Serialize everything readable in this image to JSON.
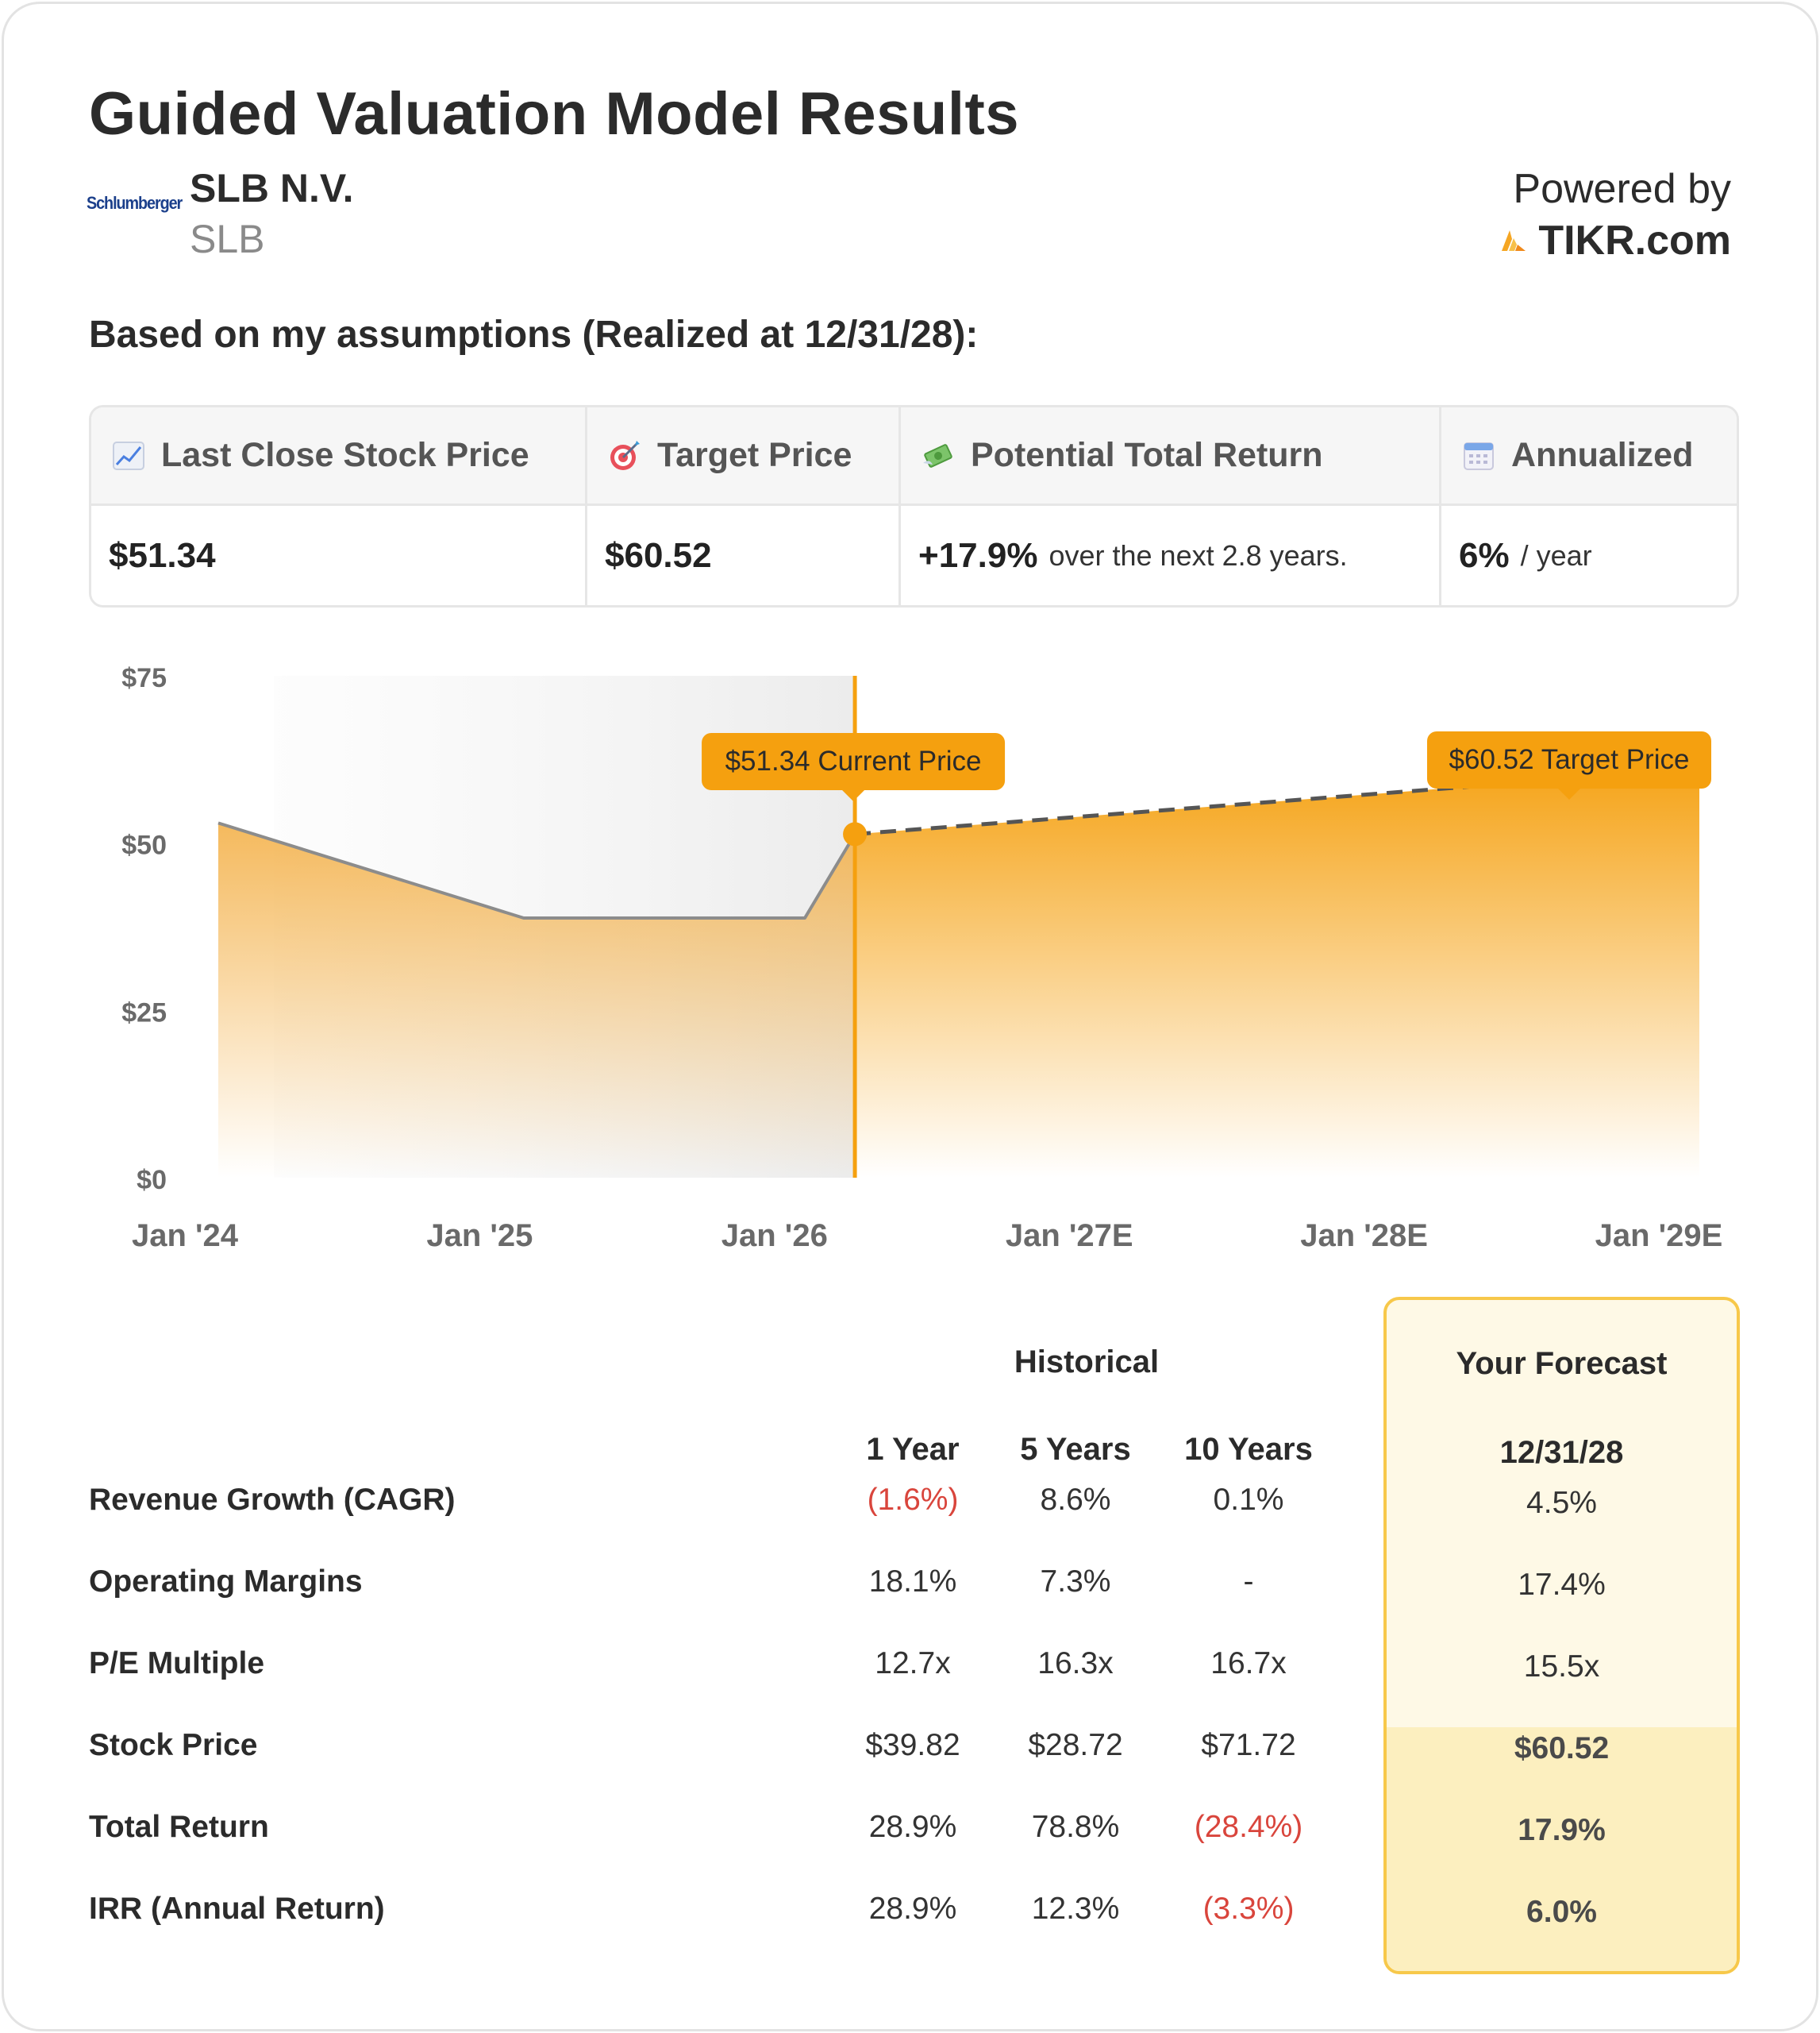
{
  "title": "Guided Valuation Model Results",
  "company": {
    "logo_text": "Schlumberger",
    "name": "SLB N.V.",
    "ticker": "SLB"
  },
  "powered_by": {
    "label": "Powered by",
    "brand": "TIKR.com",
    "brand_color": "#f5a623"
  },
  "assumptions_heading": "Based on my assumptions (Realized at 12/31/28):",
  "summary": {
    "columns": [
      {
        "icon": "chart-increasing-icon",
        "header": "Last Close Stock Price",
        "value": "$51.34",
        "sub": ""
      },
      {
        "icon": "target-icon",
        "header": "Target Price",
        "value": "$60.52",
        "sub": ""
      },
      {
        "icon": "money-with-wings-icon",
        "header": "Potential Total Return",
        "value": "+17.9%",
        "sub": "over the next 2.8 years."
      },
      {
        "icon": "calendar-icon",
        "header": "Annualized",
        "value": "6%",
        "sub": "/ year"
      }
    ]
  },
  "chart_data": {
    "type": "area",
    "x_tick_labels": [
      "Jan '24",
      "Jan '25",
      "Jan '26",
      "Jan '27E",
      "Jan '28E",
      "Jan '29E"
    ],
    "y_tick_labels": [
      "$0",
      "$25",
      "$50",
      "$75"
    ],
    "ylim": [
      0,
      75
    ],
    "xlim": [
      "2023-10-15",
      "2029-01-15"
    ],
    "grid": false,
    "series": [
      {
        "kind": "historical",
        "points": [
          {
            "x": "2024-01-01",
            "y": 53
          },
          {
            "x": "2024-12-31",
            "y": 38.8
          },
          {
            "x": "2025-12-31",
            "y": 38.8
          },
          {
            "x": "2026-03-06",
            "y": 51.34
          }
        ]
      },
      {
        "kind": "forecast",
        "points": [
          {
            "x": "2026-03-06",
            "y": 51.34
          },
          {
            "x": "2028-12-31",
            "y": 60.52
          }
        ]
      }
    ],
    "annotations": [
      {
        "label": "$51.34 Current Price",
        "x": "2026-03-06",
        "y": 51.34
      },
      {
        "label": "$60.52 Target Price",
        "x": "2028-12-31",
        "y": 60.52
      }
    ],
    "colors": {
      "accent": "#f5a00f",
      "historical_line": "#8c8c8c",
      "forecast_line": "#555555"
    }
  },
  "results": {
    "historical_label": "Historical",
    "forecast_label": "Your Forecast",
    "forecast_date": "12/31/28",
    "columns": [
      "1 Year",
      "5 Years",
      "10 Years"
    ],
    "rows": [
      {
        "label": "Revenue Growth (CAGR)",
        "values": [
          "(1.6%)",
          "8.6%",
          "0.1%"
        ],
        "forecast": "4.5%"
      },
      {
        "label": "Operating Margins",
        "values": [
          "18.1%",
          "7.3%",
          "-"
        ],
        "forecast": "17.4%"
      },
      {
        "label": "P/E Multiple",
        "values": [
          "12.7x",
          "16.3x",
          "16.7x"
        ],
        "forecast": "15.5x"
      },
      {
        "label": "Stock Price",
        "values": [
          "$39.82",
          "$28.72",
          "$71.72"
        ],
        "forecast": "$60.52"
      },
      {
        "label": "Total Return",
        "values": [
          "28.9%",
          "78.8%",
          "(28.4%)"
        ],
        "forecast": "17.9%"
      },
      {
        "label": "IRR (Annual Return)",
        "values": [
          "28.9%",
          "12.3%",
          "(3.3%)"
        ],
        "forecast": "6.0%"
      }
    ],
    "negative_color": "#d9453c",
    "forecast_bg": "#fef9e6",
    "forecast_highlight_bg": "#fcefbf",
    "forecast_border": "#f7c84a"
  }
}
